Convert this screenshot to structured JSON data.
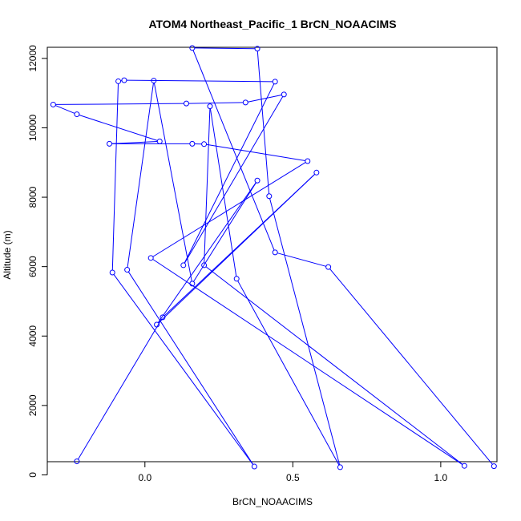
{
  "chart_data": {
    "type": "line",
    "title": "ATOM4 Northeast_Pacific_1 BrCN_NOAACIMS",
    "xlabel": "BrCN_NOAACIMS",
    "ylabel": "Altitude (m)",
    "xlim": [
      -0.33,
      1.19
    ],
    "ylim": [
      380,
      12320
    ],
    "xticks": [
      0.0,
      0.5,
      1.0
    ],
    "xtick_labels": [
      "0.0",
      "0.5",
      "1.0"
    ],
    "yticks": [
      0,
      2000,
      4000,
      6000,
      8000,
      10000,
      12000
    ],
    "ytick_labels": [
      "0",
      "2000",
      "4000",
      "6000",
      "8000",
      "10000",
      "12000"
    ],
    "grid": false,
    "legend": "none",
    "series": [
      {
        "color": "#0000ff",
        "marker": "open-circle",
        "points": [
          {
            "x": -0.23,
            "y": 390
          },
          {
            "x": 0.06,
            "y": 4540
          },
          {
            "x": 0.58,
            "y": 8710
          },
          {
            "x": 0.04,
            "y": 4330
          },
          {
            "x": 0.38,
            "y": 8480
          },
          {
            "x": 0.16,
            "y": 5510
          },
          {
            "x": 0.03,
            "y": 11360
          },
          {
            "x": -0.06,
            "y": 5910
          },
          {
            "x": 0.37,
            "y": 240
          },
          {
            "x": -0.11,
            "y": 5830
          },
          {
            "x": -0.09,
            "y": 11340
          },
          {
            "x": -0.07,
            "y": 11370
          },
          {
            "x": 0.44,
            "y": 11330
          },
          {
            "x": 0.13,
            "y": 6040
          },
          {
            "x": 0.47,
            "y": 10960
          },
          {
            "x": 0.34,
            "y": 10730
          },
          {
            "x": 0.14,
            "y": 10700
          },
          {
            "x": -0.31,
            "y": 10670
          },
          {
            "x": -0.23,
            "y": 10390
          },
          {
            "x": 0.05,
            "y": 9610
          },
          {
            "x": -0.12,
            "y": 9540
          },
          {
            "x": 0.16,
            "y": 9540
          },
          {
            "x": 0.2,
            "y": 9530
          },
          {
            "x": 0.55,
            "y": 9040
          },
          {
            "x": 0.02,
            "y": 6250
          },
          {
            "x": 1.08,
            "y": 260
          },
          {
            "x": 0.2,
            "y": 6040
          },
          {
            "x": 0.22,
            "y": 10620
          },
          {
            "x": 0.31,
            "y": 5650
          },
          {
            "x": 0.66,
            "y": 220
          },
          {
            "x": 0.42,
            "y": 8030
          },
          {
            "x": 0.38,
            "y": 12280
          },
          {
            "x": 0.16,
            "y": 12300
          },
          {
            "x": 0.44,
            "y": 6410
          },
          {
            "x": 0.62,
            "y": 5990
          },
          {
            "x": 1.18,
            "y": 250
          }
        ]
      }
    ]
  }
}
